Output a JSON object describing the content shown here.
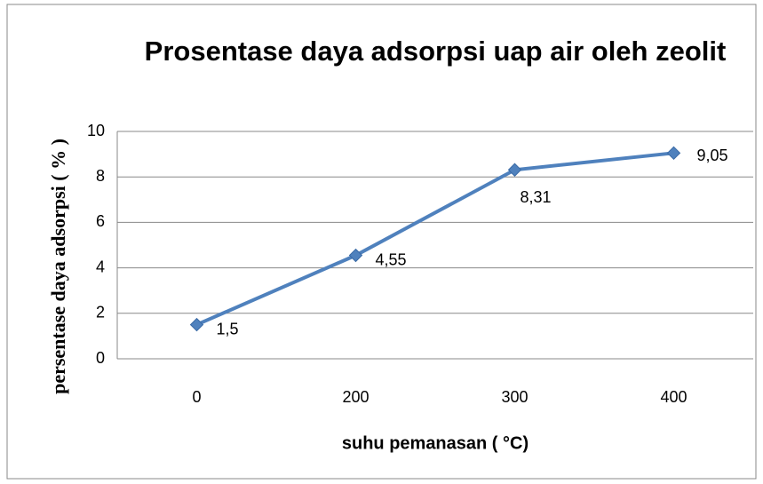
{
  "chart_data": {
    "type": "line",
    "title": "Prosentase daya adsorpsi uap air oleh zeolit",
    "x_label": "suhu pemanasan ( °C)",
    "y_label": "persentase daya adsorpsi ( % )",
    "categories": [
      "0",
      "200",
      "300",
      "400"
    ],
    "values": [
      1.5,
      4.55,
      8.31,
      9.05
    ],
    "value_labels": [
      "1,5",
      "4,55",
      "8,31",
      "9,05"
    ],
    "color": "#4f81bd",
    "ylim": [
      0,
      10
    ],
    "yticks": [
      0,
      2,
      4,
      6,
      8,
      10
    ],
    "grid": true
  }
}
